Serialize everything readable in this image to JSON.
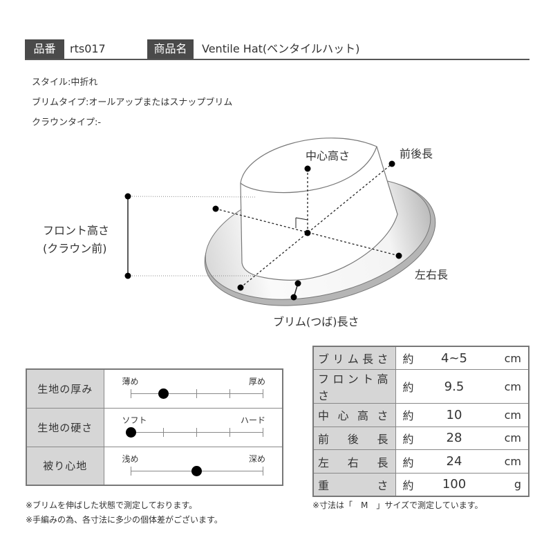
{
  "header": {
    "code_label": "品番",
    "code": "rts017",
    "name_label": "商品名",
    "name": "Ventile Hat(ベンタイルハット)"
  },
  "specs": [
    "スタイル:中折れ",
    "ブリムタイプ:オールアップまたはスナップブリム",
    "クラウンタイプ:-"
  ],
  "diagram": {
    "center_height": "中心高さ",
    "front_back": "前後長",
    "left_right": "左右長",
    "brim_length": "ブリム(つば)長さ",
    "front_height_1": "フロント高さ",
    "front_height_2": "(クラウン前)"
  },
  "feel": [
    {
      "label": "生地の厚み",
      "left": "薄め",
      "right": "厚め",
      "value": 1,
      "max": 4,
      "ticks": true
    },
    {
      "label": "生地の硬さ",
      "left": "ソフト",
      "right": "ハード",
      "value": 0,
      "max": 4,
      "ticks": true
    },
    {
      "label": "被り心地",
      "left": "浅め",
      "right": "深め",
      "value": 2,
      "max": 4,
      "ticks": false
    }
  ],
  "measurements": [
    {
      "label": "ブリム長さ",
      "approx": "約",
      "value": "4~5",
      "unit": "cm"
    },
    {
      "label": "フロント高さ",
      "approx": "約",
      "value": "9.5",
      "unit": "cm"
    },
    {
      "label": "中心高さ",
      "approx": "約",
      "value": "10",
      "unit": "cm"
    },
    {
      "label": "前後長",
      "approx": "約",
      "value": "28",
      "unit": "cm"
    },
    {
      "label": "左右長",
      "approx": "約",
      "value": "24",
      "unit": "cm"
    },
    {
      "label": "重さ",
      "approx": "約",
      "value": "100",
      "unit": "g"
    }
  ],
  "notes": {
    "left1": "※ブリムを伸ばした状態で測定しております。",
    "left2": "※手編みの為、各寸法に多少の個体差がございます。",
    "size": "※寸法は「　M　」サイズで測定しています。"
  }
}
